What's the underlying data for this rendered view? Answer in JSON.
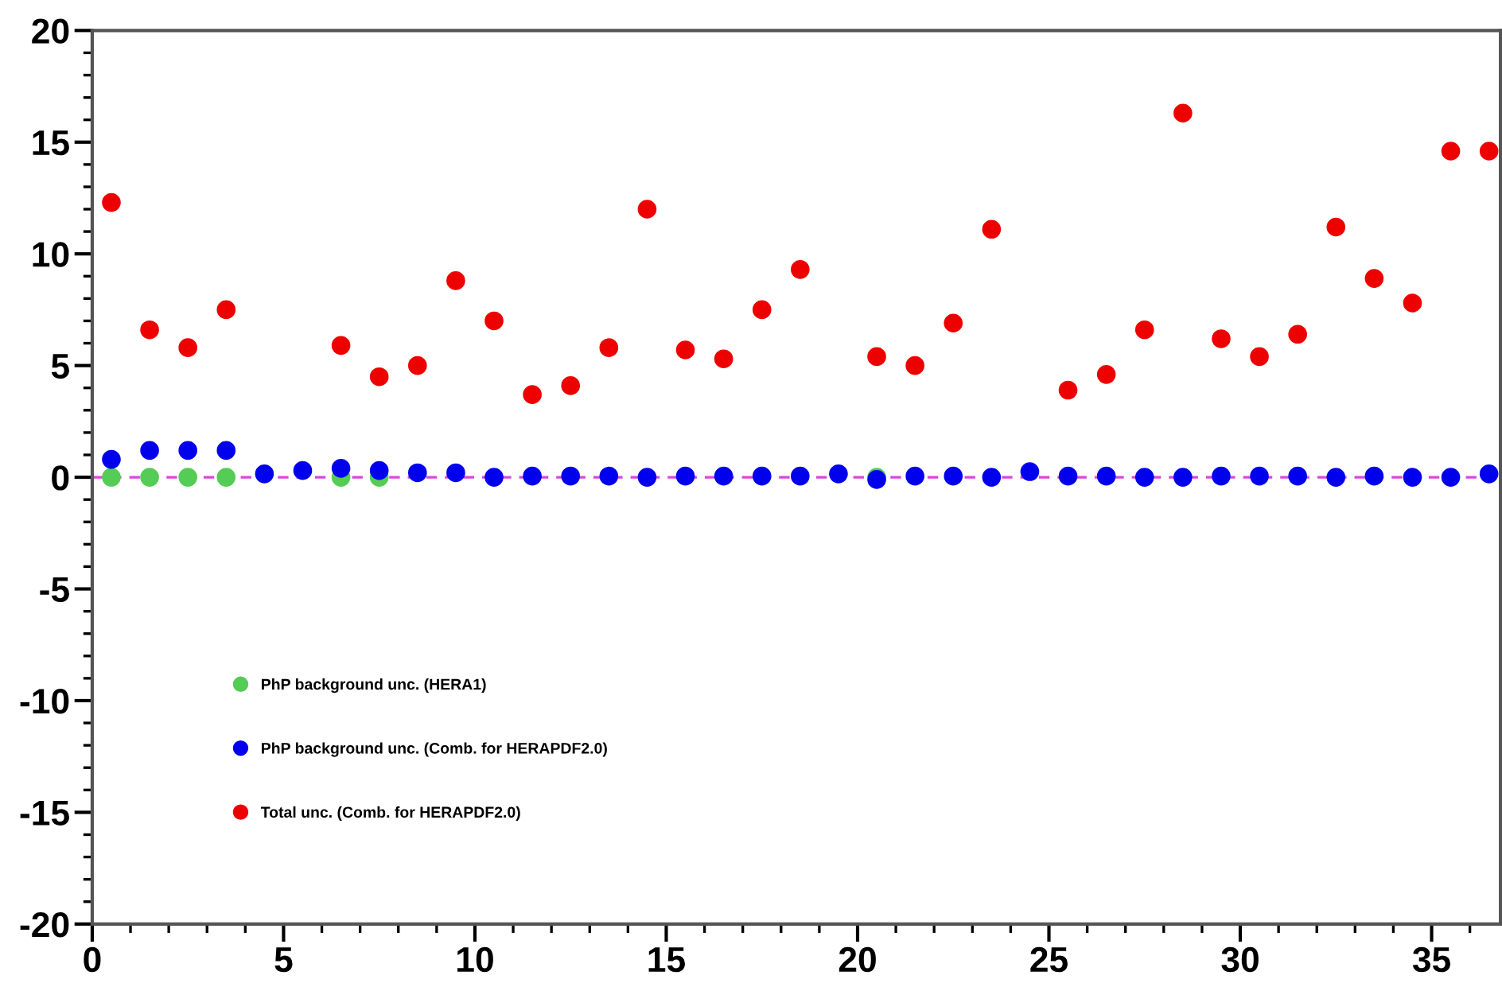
{
  "chart_data": {
    "type": "scatter",
    "marker": "circle",
    "legend": "bottom left",
    "grid": false,
    "x": [
      0.5,
      1.5,
      2.5,
      3.5,
      4.5,
      5.5,
      6.5,
      7.5,
      8.5,
      9.5,
      10.5,
      11.5,
      12.5,
      13.5,
      14.5,
      15.5,
      16.5,
      17.5,
      18.5,
      19.5,
      20.5,
      21.5,
      22.5,
      23.5,
      24.5,
      25.5,
      26.5,
      27.5,
      28.5,
      29.5,
      30.5,
      31.5,
      32.5,
      33.5,
      34.5,
      35.5,
      36.5
    ],
    "series": [
      {
        "name": "PhP background unc. (HERA1)",
        "color": "#55cc55",
        "values": [
          0,
          0,
          0,
          0,
          null,
          null,
          0,
          0,
          null,
          null,
          null,
          null,
          null,
          null,
          null,
          null,
          null,
          null,
          null,
          null,
          0,
          null,
          null,
          null,
          null,
          null,
          null,
          null,
          null,
          null,
          null,
          null,
          null,
          null,
          null,
          null,
          null
        ]
      },
      {
        "name": "PhP background unc. (Comb. for HERAPDF2.0)",
        "color": "#0000ee",
        "values": [
          0.8,
          1.2,
          1.2,
          1.2,
          0.15,
          0.3,
          0.4,
          0.3,
          0.2,
          0.2,
          0,
          0.05,
          0.05,
          0.05,
          0,
          0.05,
          0.05,
          0.05,
          0.05,
          0.15,
          -0.1,
          0.05,
          0.05,
          0,
          0.25,
          0.05,
          0.05,
          0,
          0,
          0.05,
          0.05,
          0.05,
          0,
          0.05,
          0,
          0,
          0.15
        ]
      },
      {
        "name": "Total unc. (Comb. for HERAPDF2.0)",
        "color": "#ee0000",
        "values": [
          12.3,
          6.6,
          5.8,
          7.5,
          null,
          null,
          5.9,
          4.5,
          5.0,
          8.8,
          7.0,
          3.7,
          4.1,
          5.8,
          12.0,
          5.7,
          5.3,
          7.5,
          9.3,
          null,
          5.4,
          5.0,
          6.9,
          11.1,
          null,
          3.9,
          4.6,
          6.6,
          16.3,
          6.2,
          5.4,
          6.4,
          11.2,
          8.9,
          7.8,
          14.6,
          14.6
        ]
      }
    ],
    "xlim": [
      0,
      36.8
    ],
    "ylim": [
      -20,
      20
    ],
    "xticks": [
      0,
      5,
      10,
      15,
      20,
      25,
      30,
      35
    ],
    "yticks": [
      -20,
      -15,
      -10,
      -5,
      0,
      5,
      10,
      15,
      20
    ],
    "ref_lines": [
      {
        "axis": "y",
        "value": 0,
        "color": "#dd44dd",
        "line_style": "dashed"
      }
    ]
  }
}
